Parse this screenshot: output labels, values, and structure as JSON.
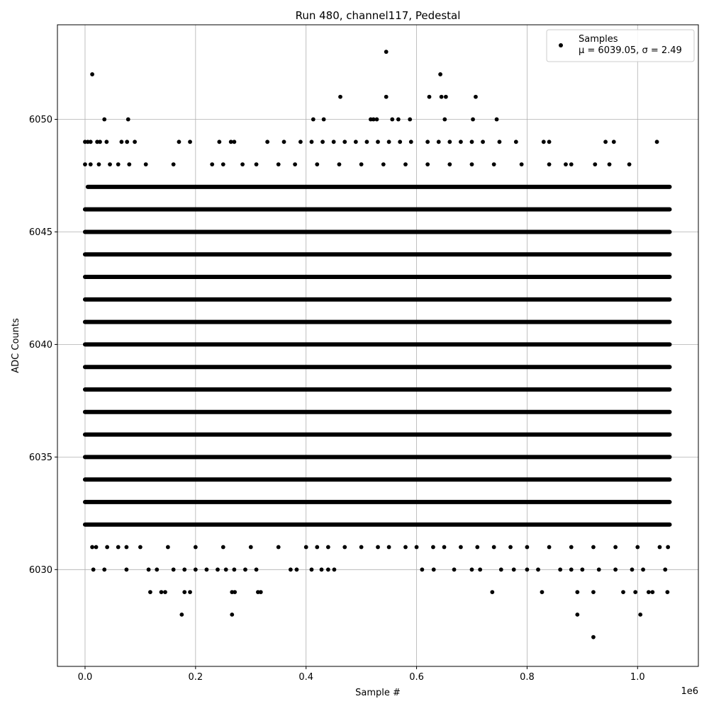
{
  "chart_data": {
    "type": "scatter",
    "title": "Run 480, channel117, Pedestal",
    "xlabel": "Sample #",
    "ylabel": "ADC Counts",
    "x_scale_label": "1e6",
    "xlim": [
      -0.05,
      1.11
    ],
    "ylim": [
      6025.7,
      6054.2
    ],
    "x_ticks": [
      0.0,
      0.2,
      0.4,
      0.6,
      0.8,
      1.0
    ],
    "x_tick_labels": [
      "0.0",
      "0.2",
      "0.4",
      "0.6",
      "0.8",
      "1.0"
    ],
    "y_ticks": [
      6030,
      6035,
      6040,
      6045,
      6050
    ],
    "y_tick_labels": [
      "6030",
      "6035",
      "6040",
      "6045",
      "6050"
    ],
    "grid": true,
    "legend_position": "top-right",
    "legend": {
      "label": "Samples",
      "stats": "μ = 6039.05, σ = 2.49"
    },
    "marker_color": "#000000",
    "series": [
      {
        "name": "Samples",
        "dense_bands": [
          {
            "y": 6032,
            "x_range": [
              0.0,
              1.058
            ]
          },
          {
            "y": 6033,
            "x_range": [
              0.0,
              1.058
            ]
          },
          {
            "y": 6034,
            "x_range": [
              0.0,
              1.058
            ]
          },
          {
            "y": 6035,
            "x_range": [
              0.0,
              1.058
            ]
          },
          {
            "y": 6036,
            "x_range": [
              0.0,
              1.058
            ]
          },
          {
            "y": 6037,
            "x_range": [
              0.0,
              1.058
            ]
          },
          {
            "y": 6038,
            "x_range": [
              0.0,
              1.058
            ]
          },
          {
            "y": 6039,
            "x_range": [
              0.0,
              1.058
            ]
          },
          {
            "y": 6040,
            "x_range": [
              0.0,
              1.058
            ]
          },
          {
            "y": 6041,
            "x_range": [
              0.0,
              1.058
            ]
          },
          {
            "y": 6042,
            "x_range": [
              0.0,
              1.058
            ]
          },
          {
            "y": 6043,
            "x_range": [
              0.0,
              1.058
            ]
          },
          {
            "y": 6044,
            "x_range": [
              0.0,
              1.058
            ]
          },
          {
            "y": 6045,
            "x_range": [
              0.0,
              1.058
            ]
          },
          {
            "y": 6046,
            "x_range": [
              0.0,
              1.058
            ]
          },
          {
            "y": 6047,
            "x_range": [
              0.005,
              1.058
            ]
          }
        ],
        "points": [
          [
            0.013,
            6052
          ],
          [
            0.545,
            6053
          ],
          [
            0.643,
            6052
          ],
          [
            0.035,
            6050
          ],
          [
            0.078,
            6050
          ],
          [
            0.413,
            6050
          ],
          [
            0.432,
            6050
          ],
          [
            0.517,
            6050
          ],
          [
            0.522,
            6050
          ],
          [
            0.528,
            6050
          ],
          [
            0.556,
            6050
          ],
          [
            0.567,
            6050
          ],
          [
            0.588,
            6050
          ],
          [
            0.651,
            6050
          ],
          [
            0.702,
            6050
          ],
          [
            0.745,
            6050
          ],
          [
            0.462,
            6051
          ],
          [
            0.545,
            6051
          ],
          [
            0.623,
            6051
          ],
          [
            0.645,
            6051
          ],
          [
            0.653,
            6051
          ],
          [
            0.707,
            6051
          ],
          [
            0.0,
            6049
          ],
          [
            0.005,
            6049
          ],
          [
            0.01,
            6049
          ],
          [
            0.022,
            6049
          ],
          [
            0.027,
            6049
          ],
          [
            0.039,
            6049
          ],
          [
            0.066,
            6049
          ],
          [
            0.076,
            6049
          ],
          [
            0.09,
            6049
          ],
          [
            0.17,
            6049
          ],
          [
            0.19,
            6049
          ],
          [
            0.243,
            6049
          ],
          [
            0.264,
            6049
          ],
          [
            0.27,
            6049
          ],
          [
            0.33,
            6049
          ],
          [
            0.36,
            6049
          ],
          [
            0.39,
            6049
          ],
          [
            0.41,
            6049
          ],
          [
            0.43,
            6049
          ],
          [
            0.45,
            6049
          ],
          [
            0.47,
            6049
          ],
          [
            0.49,
            6049
          ],
          [
            0.51,
            6049
          ],
          [
            0.53,
            6049
          ],
          [
            0.55,
            6049
          ],
          [
            0.57,
            6049
          ],
          [
            0.59,
            6049
          ],
          [
            0.62,
            6049
          ],
          [
            0.64,
            6049
          ],
          [
            0.66,
            6049
          ],
          [
            0.68,
            6049
          ],
          [
            0.7,
            6049
          ],
          [
            0.72,
            6049
          ],
          [
            0.75,
            6049
          ],
          [
            0.78,
            6049
          ],
          [
            0.83,
            6049
          ],
          [
            0.84,
            6049
          ],
          [
            0.942,
            6049
          ],
          [
            0.957,
            6049
          ],
          [
            1.035,
            6049
          ],
          [
            0.0,
            6048
          ],
          [
            0.01,
            6048
          ],
          [
            0.025,
            6048
          ],
          [
            0.045,
            6048
          ],
          [
            0.06,
            6048
          ],
          [
            0.08,
            6048
          ],
          [
            0.11,
            6048
          ],
          [
            0.16,
            6048
          ],
          [
            0.23,
            6048
          ],
          [
            0.25,
            6048
          ],
          [
            0.285,
            6048
          ],
          [
            0.31,
            6048
          ],
          [
            0.35,
            6048
          ],
          [
            0.38,
            6048
          ],
          [
            0.42,
            6048
          ],
          [
            0.46,
            6048
          ],
          [
            0.5,
            6048
          ],
          [
            0.54,
            6048
          ],
          [
            0.58,
            6048
          ],
          [
            0.62,
            6048
          ],
          [
            0.66,
            6048
          ],
          [
            0.7,
            6048
          ],
          [
            0.74,
            6048
          ],
          [
            0.79,
            6048
          ],
          [
            0.84,
            6048
          ],
          [
            0.87,
            6048
          ],
          [
            0.88,
            6048
          ],
          [
            0.923,
            6048
          ],
          [
            0.949,
            6048
          ],
          [
            0.985,
            6048
          ],
          [
            0.013,
            6031
          ],
          [
            0.02,
            6031
          ],
          [
            0.04,
            6031
          ],
          [
            0.06,
            6031
          ],
          [
            0.075,
            6031
          ],
          [
            0.1,
            6031
          ],
          [
            0.15,
            6031
          ],
          [
            0.2,
            6031
          ],
          [
            0.25,
            6031
          ],
          [
            0.3,
            6031
          ],
          [
            0.35,
            6031
          ],
          [
            0.4,
            6031
          ],
          [
            0.42,
            6031
          ],
          [
            0.44,
            6031
          ],
          [
            0.47,
            6031
          ],
          [
            0.5,
            6031
          ],
          [
            0.53,
            6031
          ],
          [
            0.55,
            6031
          ],
          [
            0.58,
            6031
          ],
          [
            0.6,
            6031
          ],
          [
            0.63,
            6031
          ],
          [
            0.65,
            6031
          ],
          [
            0.68,
            6031
          ],
          [
            0.71,
            6031
          ],
          [
            0.74,
            6031
          ],
          [
            0.77,
            6031
          ],
          [
            0.8,
            6031
          ],
          [
            0.84,
            6031
          ],
          [
            0.88,
            6031
          ],
          [
            0.92,
            6031
          ],
          [
            0.96,
            6031
          ],
          [
            1.0,
            6031
          ],
          [
            1.04,
            6031
          ],
          [
            1.055,
            6031
          ],
          [
            0.015,
            6030
          ],
          [
            0.035,
            6030
          ],
          [
            0.075,
            6030
          ],
          [
            0.115,
            6030
          ],
          [
            0.13,
            6030
          ],
          [
            0.16,
            6030
          ],
          [
            0.18,
            6030
          ],
          [
            0.2,
            6030
          ],
          [
            0.22,
            6030
          ],
          [
            0.24,
            6030
          ],
          [
            0.255,
            6030
          ],
          [
            0.27,
            6030
          ],
          [
            0.29,
            6030
          ],
          [
            0.31,
            6030
          ],
          [
            0.372,
            6030
          ],
          [
            0.383,
            6030
          ],
          [
            0.41,
            6030
          ],
          [
            0.428,
            6030
          ],
          [
            0.44,
            6030
          ],
          [
            0.451,
            6030
          ],
          [
            0.61,
            6030
          ],
          [
            0.631,
            6030
          ],
          [
            0.668,
            6030
          ],
          [
            0.7,
            6030
          ],
          [
            0.715,
            6030
          ],
          [
            0.753,
            6030
          ],
          [
            0.776,
            6030
          ],
          [
            0.8,
            6030
          ],
          [
            0.82,
            6030
          ],
          [
            0.86,
            6030
          ],
          [
            0.88,
            6030
          ],
          [
            0.9,
            6030
          ],
          [
            0.93,
            6030
          ],
          [
            0.96,
            6030
          ],
          [
            0.99,
            6030
          ],
          [
            1.01,
            6030
          ],
          [
            1.05,
            6030
          ],
          [
            0.118,
            6029
          ],
          [
            0.138,
            6029
          ],
          [
            0.145,
            6029
          ],
          [
            0.18,
            6029
          ],
          [
            0.19,
            6029
          ],
          [
            0.266,
            6029
          ],
          [
            0.271,
            6029
          ],
          [
            0.313,
            6029
          ],
          [
            0.318,
            6029
          ],
          [
            0.737,
            6029
          ],
          [
            0.827,
            6029
          ],
          [
            0.891,
            6029
          ],
          [
            0.92,
            6029
          ],
          [
            0.974,
            6029
          ],
          [
            0.996,
            6029
          ],
          [
            1.02,
            6029
          ],
          [
            1.027,
            6029
          ],
          [
            1.054,
            6029
          ],
          [
            0.175,
            6028
          ],
          [
            0.266,
            6028
          ],
          [
            0.891,
            6028
          ],
          [
            1.005,
            6028
          ],
          [
            0.92,
            6027
          ]
        ]
      }
    ]
  }
}
